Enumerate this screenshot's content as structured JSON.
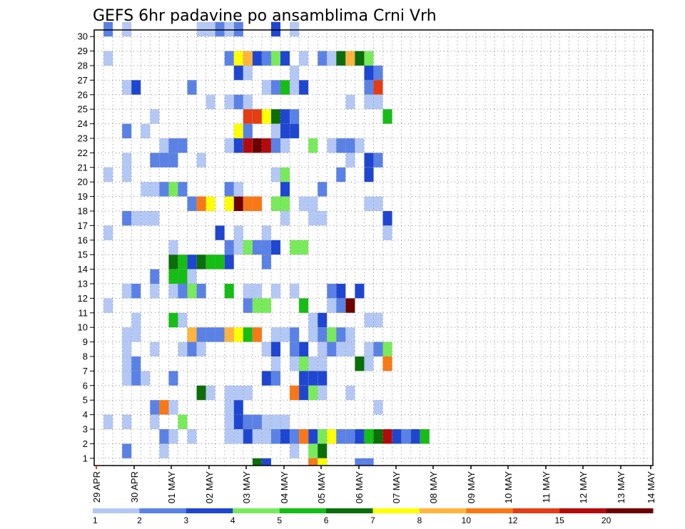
{
  "chart_data": {
    "type": "heatmap",
    "title": "GEFS 6hr padavine po ansamblima Crni Vrh",
    "x_labels": [
      "29 APR",
      "30 APR",
      "01 MAY",
      "02 MAY",
      "03 MAY",
      "04 MAY",
      "05 MAY",
      "06 MAY",
      "07 MAY",
      "08 MAY",
      "09 MAY",
      "10 MAY",
      "11 MAY",
      "12 MAY",
      "13 MAY",
      "14 MAY"
    ],
    "y_labels": [
      "1",
      "2",
      "3",
      "4",
      "5",
      "6",
      "7",
      "8",
      "9",
      "10",
      "11",
      "12",
      "13",
      "14",
      "15",
      "16",
      "17",
      "18",
      "19",
      "20",
      "21",
      "22",
      "23",
      "24",
      "25",
      "26",
      "27",
      "28",
      "29",
      "30"
    ],
    "x_steps": 60,
    "steps_per_day": 4,
    "grid": true,
    "colorbar": {
      "levels": [
        1,
        2,
        3,
        4,
        5,
        6,
        7,
        8,
        10,
        12,
        15,
        20
      ],
      "labels": [
        "1",
        "2",
        "3",
        "4",
        "5",
        "6",
        "7",
        "8",
        "10",
        "12",
        "15",
        "20"
      ],
      "colors": [
        "#b4c8f5",
        "#5a82e6",
        "#1e46d2",
        "#78eb5a",
        "#14be14",
        "#0a6e0a",
        "#ffff00",
        "#ffb43c",
        "#fa7814",
        "#e63c14",
        "#b40a0a",
        "#6e0000"
      ]
    },
    "cells": [
      [
        1,
        30,
        2
      ],
      [
        3,
        30,
        1
      ],
      [
        11,
        30,
        1
      ],
      [
        12,
        30,
        1
      ],
      [
        13,
        30,
        2
      ],
      [
        14,
        30,
        1
      ],
      [
        15,
        30,
        2
      ],
      [
        19,
        30,
        3
      ],
      [
        21,
        30,
        1
      ],
      [
        1,
        28,
        1
      ],
      [
        14,
        28,
        2
      ],
      [
        15,
        28,
        7
      ],
      [
        16,
        28,
        8
      ],
      [
        17,
        28,
        3
      ],
      [
        18,
        28,
        2
      ],
      [
        19,
        28,
        4
      ],
      [
        20,
        28,
        3
      ],
      [
        22,
        28,
        1
      ],
      [
        24,
        28,
        2
      ],
      [
        25,
        28,
        1
      ],
      [
        26,
        28,
        6
      ],
      [
        27,
        28,
        8
      ],
      [
        28,
        28,
        6
      ],
      [
        29,
        28,
        4
      ],
      [
        15,
        27,
        3
      ],
      [
        16,
        27,
        1
      ],
      [
        21,
        27,
        1
      ],
      [
        29,
        27,
        3
      ],
      [
        30,
        27,
        2
      ],
      [
        3,
        26,
        1
      ],
      [
        4,
        26,
        3
      ],
      [
        10,
        26,
        2
      ],
      [
        18,
        26,
        1
      ],
      [
        19,
        26,
        2
      ],
      [
        20,
        26,
        5
      ],
      [
        21,
        26,
        1
      ],
      [
        22,
        26,
        3
      ],
      [
        29,
        26,
        2
      ],
      [
        30,
        26,
        10
      ],
      [
        12,
        25,
        1
      ],
      [
        14,
        25,
        1
      ],
      [
        15,
        25,
        2
      ],
      [
        16,
        25,
        1
      ],
      [
        27,
        25,
        1
      ],
      [
        29,
        25,
        1
      ],
      [
        30,
        25,
        1
      ],
      [
        6,
        24,
        1
      ],
      [
        16,
        24,
        10
      ],
      [
        17,
        24,
        10
      ],
      [
        18,
        24,
        7
      ],
      [
        19,
        24,
        6
      ],
      [
        20,
        24,
        3
      ],
      [
        21,
        24,
        2
      ],
      [
        31,
        24,
        5
      ],
      [
        3,
        23,
        2
      ],
      [
        5,
        23,
        1
      ],
      [
        15,
        23,
        7
      ],
      [
        16,
        23,
        2
      ],
      [
        19,
        23,
        1
      ],
      [
        20,
        23,
        3
      ],
      [
        21,
        23,
        3
      ],
      [
        7,
        22,
        1
      ],
      [
        8,
        22,
        2
      ],
      [
        9,
        22,
        2
      ],
      [
        14,
        22,
        1
      ],
      [
        15,
        22,
        3
      ],
      [
        16,
        22,
        11
      ],
      [
        17,
        22,
        12
      ],
      [
        18,
        22,
        11
      ],
      [
        19,
        22,
        2
      ],
      [
        20,
        22,
        1
      ],
      [
        23,
        22,
        4
      ],
      [
        25,
        22,
        1
      ],
      [
        26,
        22,
        2
      ],
      [
        27,
        22,
        2
      ],
      [
        28,
        22,
        1
      ],
      [
        3,
        21,
        1
      ],
      [
        6,
        21,
        2
      ],
      [
        7,
        21,
        2
      ],
      [
        8,
        21,
        2
      ],
      [
        11,
        21,
        1
      ],
      [
        27,
        21,
        1
      ],
      [
        29,
        21,
        3
      ],
      [
        30,
        21,
        2
      ],
      [
        1,
        20,
        1
      ],
      [
        3,
        20,
        1
      ],
      [
        19,
        20,
        1
      ],
      [
        20,
        20,
        4
      ],
      [
        26,
        20,
        2
      ],
      [
        29,
        20,
        3
      ],
      [
        5,
        19,
        1
      ],
      [
        6,
        19,
        1
      ],
      [
        7,
        19,
        2
      ],
      [
        8,
        19,
        4
      ],
      [
        9,
        19,
        2
      ],
      [
        14,
        19,
        2
      ],
      [
        15,
        19,
        1
      ],
      [
        20,
        19,
        3
      ],
      [
        24,
        19,
        2
      ],
      [
        10,
        18,
        2
      ],
      [
        11,
        18,
        9
      ],
      [
        12,
        18,
        7
      ],
      [
        14,
        18,
        7
      ],
      [
        15,
        18,
        12
      ],
      [
        16,
        18,
        9
      ],
      [
        17,
        18,
        9
      ],
      [
        19,
        18,
        4
      ],
      [
        20,
        18,
        4
      ],
      [
        22,
        18,
        1
      ],
      [
        23,
        18,
        1
      ],
      [
        29,
        18,
        1
      ],
      [
        30,
        18,
        1
      ],
      [
        3,
        17,
        2
      ],
      [
        4,
        17,
        1
      ],
      [
        5,
        17,
        1
      ],
      [
        6,
        17,
        1
      ],
      [
        20,
        17,
        1
      ],
      [
        23,
        17,
        1
      ],
      [
        24,
        17,
        1
      ],
      [
        31,
        17,
        3
      ],
      [
        1,
        16,
        1
      ],
      [
        13,
        16,
        3
      ],
      [
        15,
        16,
        1
      ],
      [
        18,
        16,
        1
      ],
      [
        31,
        16,
        1
      ],
      [
        8,
        15,
        1
      ],
      [
        14,
        15,
        2
      ],
      [
        15,
        15,
        1
      ],
      [
        16,
        15,
        4
      ],
      [
        17,
        15,
        2
      ],
      [
        18,
        15,
        2
      ],
      [
        19,
        15,
        3
      ],
      [
        21,
        15,
        4
      ],
      [
        22,
        15,
        4
      ],
      [
        8,
        14,
        6
      ],
      [
        9,
        14,
        5
      ],
      [
        10,
        14,
        3
      ],
      [
        11,
        14,
        6
      ],
      [
        12,
        14,
        5
      ],
      [
        13,
        14,
        5
      ],
      [
        14,
        14,
        3
      ],
      [
        18,
        14,
        2
      ],
      [
        6,
        13,
        2
      ],
      [
        8,
        13,
        5
      ],
      [
        9,
        13,
        5
      ],
      [
        10,
        13,
        1
      ],
      [
        3,
        12,
        1
      ],
      [
        4,
        12,
        2
      ],
      [
        6,
        12,
        1
      ],
      [
        8,
        12,
        1
      ],
      [
        9,
        12,
        2
      ],
      [
        10,
        12,
        4
      ],
      [
        11,
        12,
        2
      ],
      [
        14,
        12,
        5
      ],
      [
        16,
        12,
        1
      ],
      [
        17,
        12,
        1
      ],
      [
        19,
        12,
        1
      ],
      [
        21,
        12,
        1
      ],
      [
        25,
        12,
        2
      ],
      [
        26,
        12,
        3
      ],
      [
        28,
        12,
        3
      ],
      [
        1,
        11,
        1
      ],
      [
        16,
        11,
        2
      ],
      [
        17,
        11,
        4
      ],
      [
        18,
        11,
        4
      ],
      [
        22,
        11,
        5
      ],
      [
        25,
        11,
        1
      ],
      [
        26,
        11,
        2
      ],
      [
        27,
        11,
        12
      ],
      [
        4,
        10,
        1
      ],
      [
        8,
        10,
        5
      ],
      [
        9,
        10,
        1
      ],
      [
        23,
        10,
        1
      ],
      [
        24,
        10,
        3
      ],
      [
        29,
        10,
        1
      ],
      [
        30,
        10,
        1
      ],
      [
        3,
        9,
        1
      ],
      [
        4,
        9,
        1
      ],
      [
        10,
        9,
        8
      ],
      [
        11,
        9,
        2
      ],
      [
        12,
        9,
        2
      ],
      [
        13,
        9,
        2
      ],
      [
        14,
        9,
        8
      ],
      [
        15,
        9,
        7
      ],
      [
        16,
        9,
        5
      ],
      [
        17,
        9,
        9
      ],
      [
        19,
        9,
        1
      ],
      [
        20,
        9,
        1
      ],
      [
        21,
        9,
        2
      ],
      [
        23,
        9,
        1
      ],
      [
        24,
        9,
        2
      ],
      [
        25,
        9,
        4
      ],
      [
        26,
        9,
        2
      ],
      [
        27,
        9,
        1
      ],
      [
        3,
        8,
        1
      ],
      [
        6,
        8,
        1
      ],
      [
        9,
        8,
        1
      ],
      [
        10,
        8,
        2
      ],
      [
        11,
        8,
        1
      ],
      [
        18,
        8,
        1
      ],
      [
        19,
        8,
        3
      ],
      [
        21,
        8,
        2
      ],
      [
        22,
        8,
        3
      ],
      [
        24,
        8,
        1
      ],
      [
        25,
        8,
        2
      ],
      [
        26,
        8,
        1
      ],
      [
        27,
        8,
        1
      ],
      [
        29,
        8,
        1
      ],
      [
        30,
        8,
        2
      ],
      [
        31,
        8,
        4
      ],
      [
        3,
        7,
        1
      ],
      [
        4,
        7,
        2
      ],
      [
        19,
        7,
        1
      ],
      [
        21,
        7,
        1
      ],
      [
        22,
        7,
        4
      ],
      [
        23,
        7,
        1
      ],
      [
        24,
        7,
        1
      ],
      [
        28,
        7,
        6
      ],
      [
        29,
        7,
        1
      ],
      [
        31,
        7,
        9
      ],
      [
        3,
        6,
        1
      ],
      [
        4,
        6,
        2
      ],
      [
        5,
        6,
        1
      ],
      [
        8,
        6,
        2
      ],
      [
        18,
        6,
        3
      ],
      [
        19,
        6,
        2
      ],
      [
        22,
        6,
        3
      ],
      [
        23,
        6,
        3
      ],
      [
        24,
        6,
        3
      ],
      [
        11,
        5,
        6
      ],
      [
        12,
        5,
        1
      ],
      [
        14,
        5,
        1
      ],
      [
        15,
        5,
        1
      ],
      [
        16,
        5,
        1
      ],
      [
        21,
        5,
        9
      ],
      [
        22,
        5,
        3
      ],
      [
        23,
        5,
        4
      ],
      [
        24,
        5,
        1
      ],
      [
        27,
        5,
        1
      ],
      [
        6,
        4,
        2
      ],
      [
        7,
        4,
        9
      ],
      [
        8,
        4,
        1
      ],
      [
        14,
        4,
        1
      ],
      [
        15,
        4,
        3
      ],
      [
        30,
        4,
        1
      ],
      [
        1,
        3,
        1
      ],
      [
        3,
        3,
        1
      ],
      [
        6,
        3,
        1
      ],
      [
        9,
        3,
        4
      ],
      [
        14,
        3,
        1
      ],
      [
        15,
        3,
        3
      ],
      [
        16,
        3,
        2
      ],
      [
        17,
        3,
        2
      ],
      [
        18,
        3,
        1
      ],
      [
        19,
        3,
        1
      ],
      [
        20,
        3,
        1
      ],
      [
        7,
        2,
        2
      ],
      [
        8,
        2,
        1
      ],
      [
        10,
        2,
        1
      ],
      [
        14,
        2,
        1
      ],
      [
        15,
        2,
        1
      ],
      [
        16,
        2,
        3
      ],
      [
        17,
        2,
        1
      ],
      [
        18,
        2,
        1
      ],
      [
        19,
        2,
        2
      ],
      [
        20,
        2,
        3
      ],
      [
        21,
        2,
        2
      ],
      [
        22,
        2,
        9
      ],
      [
        23,
        2,
        3
      ],
      [
        24,
        2,
        4
      ],
      [
        25,
        2,
        7
      ],
      [
        26,
        2,
        2
      ],
      [
        27,
        2,
        2
      ],
      [
        28,
        2,
        3
      ],
      [
        29,
        2,
        5
      ],
      [
        30,
        2,
        6
      ],
      [
        31,
        2,
        11
      ],
      [
        32,
        2,
        3
      ],
      [
        33,
        2,
        2
      ],
      [
        34,
        2,
        3
      ],
      [
        35,
        2,
        5
      ],
      [
        3,
        1,
        2
      ],
      [
        7,
        1,
        1
      ],
      [
        21,
        1,
        1
      ],
      [
        23,
        1,
        4
      ],
      [
        24,
        1,
        6
      ],
      [
        17,
        0,
        6
      ],
      [
        18,
        0,
        3
      ],
      [
        23,
        0,
        9
      ],
      [
        24,
        0,
        7
      ],
      [
        28,
        0,
        2
      ],
      [
        29,
        0,
        2
      ]
    ]
  }
}
